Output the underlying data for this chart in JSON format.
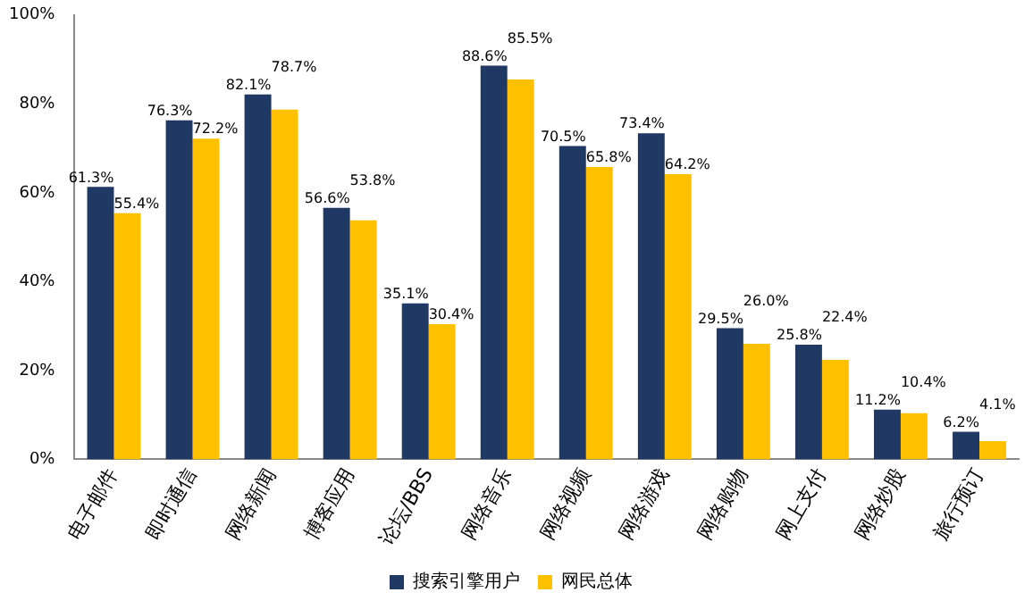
{
  "chart_data": {
    "type": "bar",
    "categories": [
      "电子邮件",
      "即时通信",
      "网络新闻",
      "博客应用",
      "论坛/BBS",
      "网络音乐",
      "网络视频",
      "网络游戏",
      "网络购物",
      "网上支付",
      "网络炒股",
      "旅行预订"
    ],
    "series": [
      {
        "name": "搜索引擎用户",
        "color": "#1f3864",
        "values": [
          61.3,
          76.3,
          82.1,
          56.6,
          35.1,
          88.6,
          70.5,
          73.4,
          29.5,
          25.8,
          11.2,
          6.2
        ],
        "value_labels": [
          "61.3%",
          "76.3%",
          "82.1%",
          "56.6%",
          "35.1%",
          "88.6%",
          "70.5%",
          "73.4%",
          "29.5%",
          "25.8%",
          "11.2%",
          "6.2%"
        ]
      },
      {
        "name": "网民总体",
        "color": "#ffc000",
        "values": [
          55.4,
          72.2,
          78.7,
          53.8,
          30.4,
          85.5,
          65.8,
          64.2,
          26.0,
          22.4,
          10.4,
          4.1
        ],
        "value_labels": [
          "55.4%",
          "72.2%",
          "78.7%",
          "53.8%",
          "30.4%",
          "85.5%",
          "65.8%",
          "64.2%",
          "26.0%",
          "22.4%",
          "10.4%",
          "4.1%"
        ]
      }
    ],
    "ylim": [
      0,
      100
    ],
    "yticks": [
      {
        "value": 0,
        "label": "0%"
      },
      {
        "value": 20,
        "label": "20%"
      },
      {
        "value": 40,
        "label": "40%"
      },
      {
        "value": 60,
        "label": "60%"
      },
      {
        "value": 80,
        "label": "80%"
      },
      {
        "value": 100,
        "label": "100%"
      }
    ],
    "grid": false,
    "legend": "bottom"
  }
}
